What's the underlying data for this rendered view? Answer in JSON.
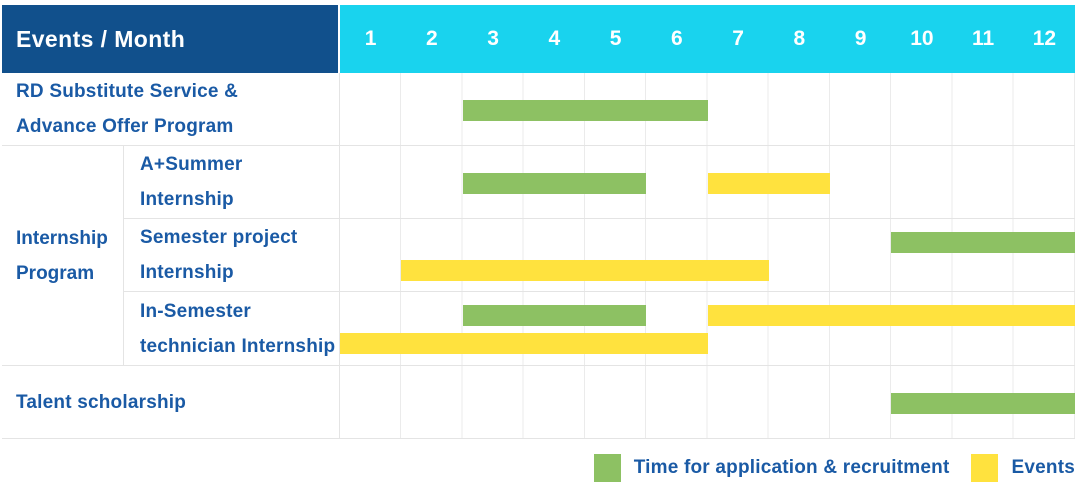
{
  "header": {
    "title": "Events / Month",
    "months": [
      "1",
      "2",
      "3",
      "4",
      "5",
      "6",
      "7",
      "8",
      "9",
      "10",
      "11",
      "12"
    ]
  },
  "group": {
    "label_lines": [
      "Internship",
      "Program"
    ]
  },
  "rows": [
    {
      "label_lines": [
        "RD Substitute Service &",
        "Advance Offer Program"
      ],
      "bars": [
        {
          "color": "green",
          "start": 3,
          "end": 6,
          "lane": "mid"
        }
      ]
    },
    {
      "label_lines": [
        "A+Summer",
        "Internship"
      ],
      "bars": [
        {
          "color": "green",
          "start": 3,
          "end": 5,
          "lane": "mid"
        },
        {
          "color": "yellow",
          "start": 7,
          "end": 8,
          "lane": "mid"
        }
      ]
    },
    {
      "label_lines": [
        "Semester project",
        "Internship"
      ],
      "bars": [
        {
          "color": "green",
          "start": 10,
          "end": 12,
          "lane": "top"
        },
        {
          "color": "yellow",
          "start": 2,
          "end": 7,
          "lane": "bottom"
        }
      ]
    },
    {
      "label_lines": [
        "In-Semester",
        "technician Internship"
      ],
      "bars": [
        {
          "color": "green",
          "start": 3,
          "end": 5,
          "lane": "top"
        },
        {
          "color": "yellow",
          "start": 7,
          "end": 12,
          "lane": "top"
        },
        {
          "color": "yellow",
          "start": 1,
          "end": 6,
          "lane": "bottom"
        }
      ]
    },
    {
      "label_lines": [
        "Talent scholarship"
      ],
      "bars": [
        {
          "color": "green",
          "start": 10,
          "end": 12,
          "lane": "mid"
        }
      ]
    }
  ],
  "legend": {
    "items": [
      {
        "label": "Time for application & recruitment",
        "color": "#8DC163",
        "series_key": "green"
      },
      {
        "label": "Events",
        "color": "#FFE23E",
        "series_key": "yellow"
      }
    ]
  },
  "colors": {
    "navy": "#11508C",
    "cyan": "#19D3EE",
    "green": "#8DC163",
    "yellow": "#FFE23E",
    "text_blue": "#1A5AA5",
    "grid_line": "#EBEBEB",
    "row_border": "#E4E4E4"
  },
  "chart_data": {
    "type": "gantt",
    "title": "Events / Month",
    "x_axis": {
      "label": "Month",
      "ticks": [
        1,
        2,
        3,
        4,
        5,
        6,
        7,
        8,
        9,
        10,
        11,
        12
      ],
      "range": [
        1,
        12
      ]
    },
    "legend_position": "bottom-right",
    "grid": true,
    "series_legend": [
      {
        "name": "Time for application & recruitment",
        "color": "#8DC163"
      },
      {
        "name": "Events",
        "color": "#FFE23E"
      }
    ],
    "rows": [
      {
        "group": null,
        "label": "RD Substitute Service & Advance Offer Program",
        "bars": [
          {
            "series": "Time for application & recruitment",
            "start_month": 3,
            "end_month": 6
          }
        ]
      },
      {
        "group": "Internship Program",
        "label": "A+Summer Internship",
        "bars": [
          {
            "series": "Time for application & recruitment",
            "start_month": 3,
            "end_month": 5
          },
          {
            "series": "Events",
            "start_month": 7,
            "end_month": 8
          }
        ]
      },
      {
        "group": "Internship Program",
        "label": "Semester project Internship",
        "bars": [
          {
            "series": "Time for application & recruitment",
            "start_month": 10,
            "end_month": 12
          },
          {
            "series": "Events",
            "start_month": 2,
            "end_month": 7
          }
        ]
      },
      {
        "group": "Internship Program",
        "label": "In-Semester technician Internship",
        "bars": [
          {
            "series": "Time for application & recruitment",
            "start_month": 3,
            "end_month": 5
          },
          {
            "series": "Events",
            "start_month": 7,
            "end_month": 12
          },
          {
            "series": "Events",
            "start_month": 1,
            "end_month": 6
          }
        ]
      },
      {
        "group": null,
        "label": "Talent scholarship",
        "bars": [
          {
            "series": "Time for application & recruitment",
            "start_month": 10,
            "end_month": 12
          }
        ]
      }
    ]
  }
}
